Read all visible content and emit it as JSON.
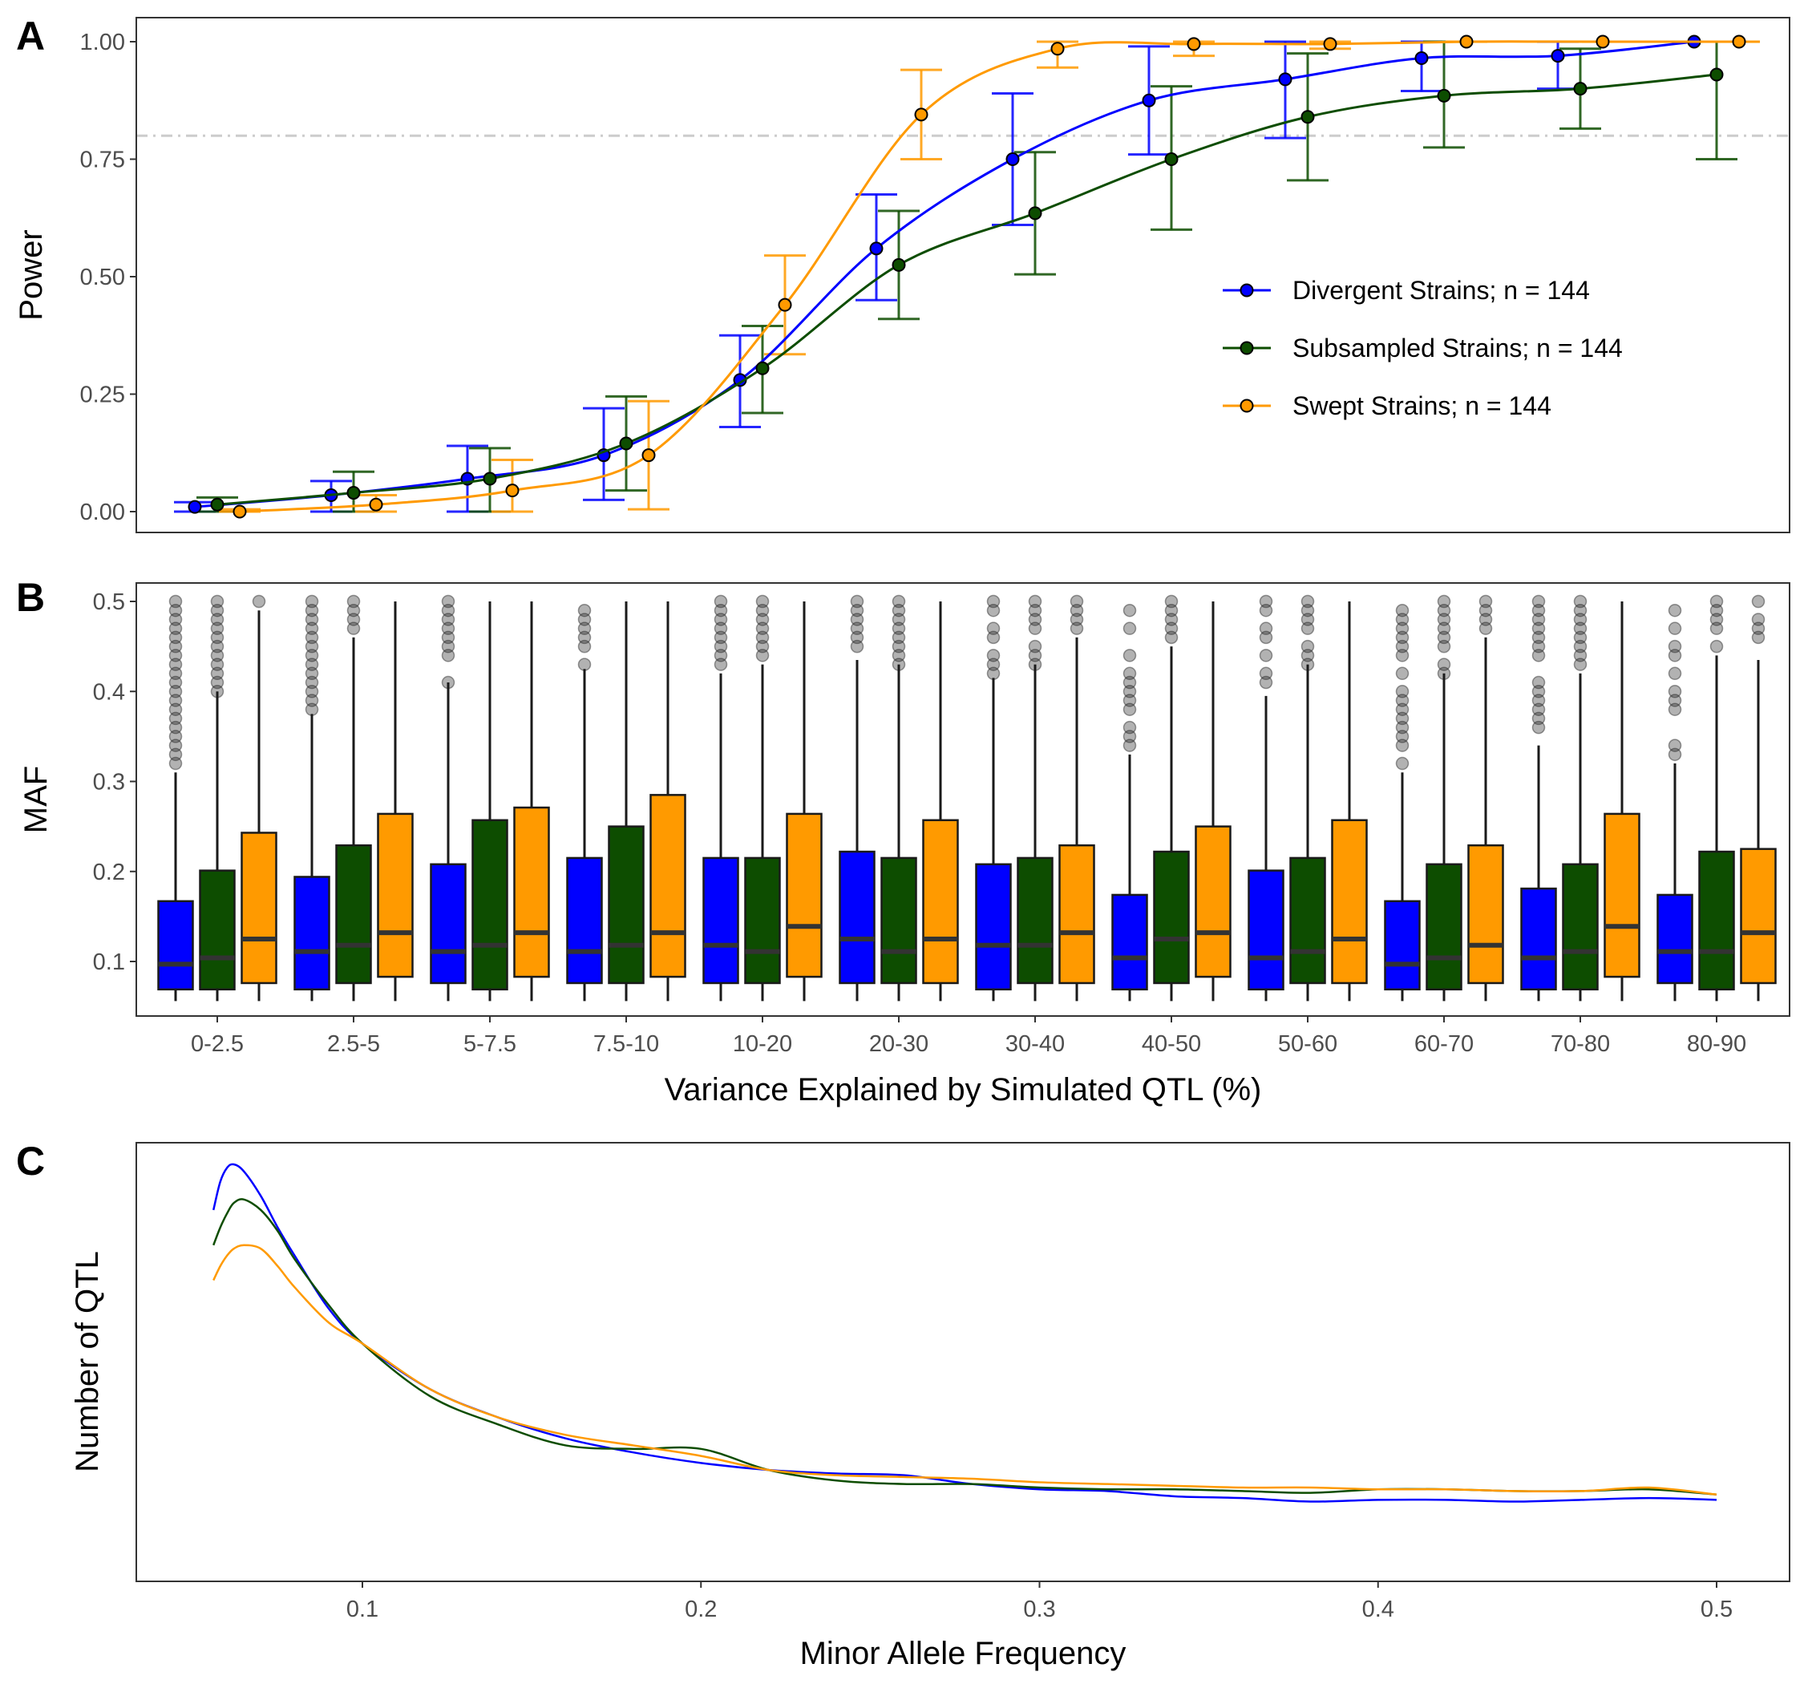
{
  "colors": {
    "divergent": "#0000ff",
    "subsampled": "#0d4d00",
    "swept": "#ff9a00",
    "reference_line": "#cccccc"
  },
  "chart_data": [
    {
      "panel": "A",
      "type": "line",
      "xlabel": "",
      "ylabel": "Power",
      "ylim": [
        0,
        1
      ],
      "yticks": [
        "0.00",
        "0.25",
        "0.50",
        "0.75",
        "1.00"
      ],
      "categories": [
        "0-2.5",
        "2.5-5",
        "5-7.5",
        "7.5-10",
        "10-20",
        "20-30",
        "30-40",
        "40-50",
        "50-60",
        "60-70",
        "70-80",
        "80-90"
      ],
      "reference_line": 0.8,
      "error_bars": true,
      "legend_position": "right",
      "series": [
        {
          "name": "Divergent Strains; n = 144",
          "values": [
            0.01,
            0.035,
            0.07,
            0.12,
            0.28,
            0.56,
            0.75,
            0.875,
            0.92,
            0.965,
            0.97,
            1.0
          ],
          "lower": [
            0.0,
            0.0,
            0.0,
            0.025,
            0.18,
            0.45,
            0.61,
            0.76,
            0.795,
            0.895,
            0.9,
            1.0
          ],
          "upper": [
            0.02,
            0.065,
            0.14,
            0.22,
            0.375,
            0.675,
            0.89,
            0.99,
            1.0,
            1.0,
            1.0,
            1.0
          ]
        },
        {
          "name": "Subsampled Strains; n = 144",
          "values": [
            0.015,
            0.04,
            0.07,
            0.145,
            0.305,
            0.525,
            0.635,
            0.75,
            0.84,
            0.885,
            0.9,
            0.93
          ],
          "lower": [
            0.0,
            0.0,
            0.0,
            0.045,
            0.21,
            0.41,
            0.505,
            0.6,
            0.705,
            0.775,
            0.815,
            0.75
          ],
          "upper": [
            0.03,
            0.085,
            0.135,
            0.245,
            0.395,
            0.64,
            0.765,
            0.905,
            0.975,
            1.0,
            0.985,
            1.0
          ]
        },
        {
          "name": "Swept Strains; n = 144",
          "values": [
            0.0,
            0.015,
            0.045,
            0.12,
            0.44,
            0.845,
            0.985,
            0.995,
            0.995,
            1.0,
            1.0,
            1.0
          ],
          "lower": [
            0.0,
            0.0,
            0.0,
            0.005,
            0.335,
            0.75,
            0.945,
            0.97,
            0.985,
            1.0,
            1.0,
            1.0
          ],
          "upper": [
            0.005,
            0.035,
            0.11,
            0.235,
            0.545,
            0.94,
            1.0,
            1.0,
            1.0,
            1.0,
            1.0,
            1.0
          ]
        }
      ]
    },
    {
      "panel": "B",
      "type": "box",
      "xlabel": "Variance Explained by Simulated QTL (%)",
      "ylabel": "MAF",
      "ylim": [
        0.05,
        0.52
      ],
      "yticks": [
        "0.1",
        "0.2",
        "0.3",
        "0.4",
        "0.5"
      ],
      "categories": [
        "0-2.5",
        "2.5-5",
        "5-7.5",
        "7.5-10",
        "10-20",
        "20-30",
        "30-40",
        "40-50",
        "50-60",
        "60-70",
        "70-80",
        "80-90"
      ],
      "series": [
        {
          "name": "Divergent Strains; n = 144",
          "q1": [
            0.069,
            0.069,
            0.076,
            0.076,
            0.076,
            0.076,
            0.069,
            0.069,
            0.069,
            0.069,
            0.069,
            0.076
          ],
          "median": [
            0.097,
            0.111,
            0.111,
            0.111,
            0.118,
            0.125,
            0.118,
            0.104,
            0.104,
            0.097,
            0.104,
            0.111
          ],
          "q3": [
            0.167,
            0.194,
            0.208,
            0.215,
            0.215,
            0.222,
            0.208,
            0.174,
            0.201,
            0.167,
            0.181,
            0.174
          ],
          "whisker_low": [
            0.056,
            0.056,
            0.056,
            0.056,
            0.056,
            0.056,
            0.056,
            0.056,
            0.056,
            0.056,
            0.056,
            0.056
          ],
          "whisker_high": [
            0.31,
            0.375,
            0.41,
            0.425,
            0.42,
            0.435,
            0.415,
            0.33,
            0.395,
            0.31,
            0.34,
            0.32
          ],
          "outliers": [
            [
              0.32,
              0.33,
              0.34,
              0.35,
              0.36,
              0.37,
              0.38,
              0.39,
              0.4,
              0.41,
              0.42,
              0.43,
              0.44,
              0.45,
              0.46,
              0.47,
              0.48,
              0.49,
              0.5
            ],
            [
              0.38,
              0.39,
              0.4,
              0.41,
              0.42,
              0.43,
              0.44,
              0.45,
              0.46,
              0.47,
              0.48,
              0.49,
              0.5
            ],
            [
              0.41,
              0.44,
              0.45,
              0.46,
              0.47,
              0.48,
              0.49,
              0.5
            ],
            [
              0.43,
              0.45,
              0.46,
              0.47,
              0.48,
              0.49
            ],
            [
              0.43,
              0.44,
              0.45,
              0.46,
              0.47,
              0.48,
              0.49,
              0.5
            ],
            [
              0.45,
              0.46,
              0.47,
              0.48,
              0.49,
              0.5
            ],
            [
              0.42,
              0.43,
              0.44,
              0.46,
              0.47,
              0.49,
              0.5
            ],
            [
              0.34,
              0.35,
              0.36,
              0.38,
              0.39,
              0.4,
              0.41,
              0.42,
              0.44,
              0.47,
              0.49
            ],
            [
              0.41,
              0.42,
              0.44,
              0.46,
              0.47,
              0.49,
              0.5
            ],
            [
              0.32,
              0.34,
              0.35,
              0.36,
              0.37,
              0.38,
              0.39,
              0.4,
              0.42,
              0.44,
              0.45,
              0.46,
              0.47,
              0.48,
              0.49
            ],
            [
              0.36,
              0.37,
              0.38,
              0.39,
              0.4,
              0.41,
              0.44,
              0.45,
              0.46,
              0.47,
              0.48,
              0.49,
              0.5
            ],
            [
              0.33,
              0.34,
              0.38,
              0.39,
              0.4,
              0.42,
              0.44,
              0.45,
              0.47,
              0.49
            ]
          ]
        },
        {
          "name": "Subsampled Strains; n = 144",
          "q1": [
            0.069,
            0.076,
            0.069,
            0.076,
            0.076,
            0.076,
            0.076,
            0.076,
            0.076,
            0.069,
            0.069,
            0.069
          ],
          "median": [
            0.104,
            0.118,
            0.118,
            0.118,
            0.111,
            0.111,
            0.118,
            0.125,
            0.111,
            0.104,
            0.111,
            0.111
          ],
          "q3": [
            0.201,
            0.229,
            0.257,
            0.25,
            0.215,
            0.215,
            0.215,
            0.222,
            0.215,
            0.208,
            0.208,
            0.222
          ],
          "whisker_low": [
            0.056,
            0.056,
            0.056,
            0.056,
            0.056,
            0.056,
            0.056,
            0.056,
            0.056,
            0.056,
            0.056,
            0.056
          ],
          "whisker_high": [
            0.4,
            0.46,
            0.5,
            0.5,
            0.43,
            0.43,
            0.43,
            0.45,
            0.43,
            0.42,
            0.42,
            0.44
          ],
          "outliers": [
            [
              0.4,
              0.41,
              0.42,
              0.43,
              0.44,
              0.45,
              0.46,
              0.47,
              0.48,
              0.49,
              0.5
            ],
            [
              0.47,
              0.48,
              0.49,
              0.5
            ],
            [],
            [],
            [
              0.44,
              0.45,
              0.46,
              0.47,
              0.48,
              0.49,
              0.5
            ],
            [
              0.43,
              0.44,
              0.45,
              0.46,
              0.47,
              0.48,
              0.49,
              0.5
            ],
            [
              0.43,
              0.44,
              0.45,
              0.47,
              0.48,
              0.49,
              0.5
            ],
            [
              0.46,
              0.47,
              0.48,
              0.49,
              0.5
            ],
            [
              0.43,
              0.44,
              0.45,
              0.47,
              0.48,
              0.49,
              0.5
            ],
            [
              0.42,
              0.43,
              0.45,
              0.46,
              0.47,
              0.48,
              0.49,
              0.5
            ],
            [
              0.43,
              0.44,
              0.45,
              0.46,
              0.47,
              0.48,
              0.49,
              0.5
            ],
            [
              0.45,
              0.47,
              0.48,
              0.49,
              0.5
            ]
          ]
        },
        {
          "name": "Swept Strains; n = 144",
          "q1": [
            0.076,
            0.083,
            0.083,
            0.083,
            0.083,
            0.076,
            0.076,
            0.083,
            0.076,
            0.076,
            0.083,
            0.076
          ],
          "median": [
            0.125,
            0.132,
            0.132,
            0.132,
            0.139,
            0.125,
            0.132,
            0.132,
            0.125,
            0.118,
            0.139,
            0.132
          ],
          "q3": [
            0.243,
            0.264,
            0.271,
            0.285,
            0.264,
            0.257,
            0.229,
            0.25,
            0.257,
            0.229,
            0.264,
            0.225
          ],
          "whisker_low": [
            0.056,
            0.056,
            0.056,
            0.056,
            0.056,
            0.056,
            0.056,
            0.056,
            0.056,
            0.056,
            0.056,
            0.056
          ],
          "whisker_high": [
            0.49,
            0.5,
            0.5,
            0.5,
            0.5,
            0.5,
            0.46,
            0.5,
            0.5,
            0.46,
            0.5,
            0.435
          ],
          "outliers": [
            [
              0.5
            ],
            [],
            [],
            [],
            [],
            [],
            [
              0.47,
              0.48,
              0.49,
              0.5
            ],
            [],
            [],
            [
              0.47,
              0.48,
              0.49,
              0.5
            ],
            [],
            [
              0.46,
              0.47,
              0.48,
              0.5
            ]
          ]
        }
      ]
    },
    {
      "panel": "C",
      "type": "line",
      "xlabel": "Minor Allele Frequency",
      "ylabel": "Number of QTL",
      "xlim": [
        0.035,
        0.525
      ],
      "xticks": [
        "0.1",
        "0.2",
        "0.3",
        "0.4",
        "0.5"
      ],
      "yticks": [],
      "series": [
        {
          "name": "Divergent Strains; n = 144",
          "x": [
            0.056,
            0.058,
            0.06,
            0.062,
            0.065,
            0.07,
            0.075,
            0.08,
            0.09,
            0.1,
            0.12,
            0.14,
            0.16,
            0.18,
            0.2,
            0.22,
            0.24,
            0.26,
            0.28,
            0.3,
            0.32,
            0.34,
            0.36,
            0.38,
            0.4,
            0.42,
            0.44,
            0.46,
            0.48,
            0.5
          ],
          "y": [
            1.0,
            1.08,
            1.12,
            1.13,
            1.11,
            1.04,
            0.95,
            0.87,
            0.72,
            0.62,
            0.49,
            0.41,
            0.35,
            0.31,
            0.28,
            0.26,
            0.25,
            0.245,
            0.22,
            0.205,
            0.2,
            0.185,
            0.18,
            0.17,
            0.175,
            0.175,
            0.17,
            0.175,
            0.18,
            0.175
          ]
        },
        {
          "name": "Subsampled Strains; n = 144",
          "x": [
            0.056,
            0.058,
            0.06,
            0.062,
            0.065,
            0.07,
            0.075,
            0.08,
            0.09,
            0.1,
            0.12,
            0.14,
            0.16,
            0.18,
            0.2,
            0.22,
            0.24,
            0.26,
            0.28,
            0.3,
            0.32,
            0.34,
            0.36,
            0.38,
            0.4,
            0.42,
            0.44,
            0.46,
            0.48,
            0.5
          ],
          "y": [
            0.9,
            0.95,
            0.99,
            1.02,
            1.03,
            1.0,
            0.94,
            0.86,
            0.73,
            0.62,
            0.47,
            0.39,
            0.33,
            0.32,
            0.32,
            0.26,
            0.23,
            0.22,
            0.22,
            0.21,
            0.205,
            0.205,
            0.2,
            0.195,
            0.205,
            0.205,
            0.2,
            0.2,
            0.205,
            0.19
          ]
        },
        {
          "name": "Swept Strains; n = 144",
          "x": [
            0.056,
            0.058,
            0.06,
            0.062,
            0.065,
            0.07,
            0.075,
            0.08,
            0.09,
            0.1,
            0.12,
            0.14,
            0.16,
            0.18,
            0.2,
            0.22,
            0.24,
            0.26,
            0.28,
            0.3,
            0.32,
            0.34,
            0.36,
            0.38,
            0.4,
            0.42,
            0.44,
            0.46,
            0.48,
            0.5
          ],
          "y": [
            0.8,
            0.84,
            0.87,
            0.89,
            0.9,
            0.89,
            0.84,
            0.78,
            0.68,
            0.62,
            0.49,
            0.41,
            0.36,
            0.33,
            0.3,
            0.26,
            0.245,
            0.24,
            0.235,
            0.225,
            0.22,
            0.215,
            0.21,
            0.21,
            0.205,
            0.205,
            0.2,
            0.2,
            0.21,
            0.19
          ]
        }
      ]
    }
  ]
}
